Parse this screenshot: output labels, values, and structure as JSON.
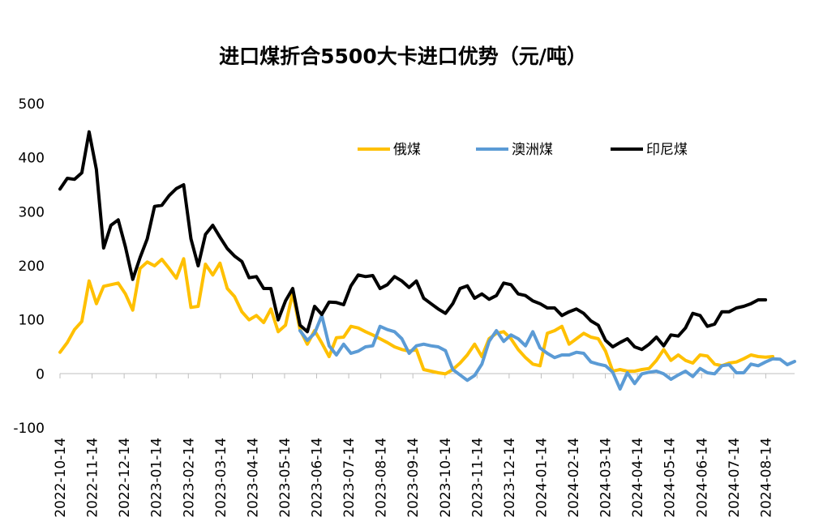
{
  "chart_data": {
    "type": "line",
    "title": "进口煤折合5500大卡进口优势（元/吨）",
    "xlabel": "",
    "ylabel": "",
    "ylim": [
      -100,
      500
    ],
    "yticks": [
      "500",
      "400",
      "300",
      "200",
      "100",
      "0",
      "-100"
    ],
    "xticks": [
      "2022-10-14",
      "2022-11-14",
      "2022-12-14",
      "2023-01-14",
      "2023-02-14",
      "2023-03-14",
      "2023-04-14",
      "2023-05-14",
      "2023-06-14",
      "2023-07-14",
      "2023-08-14",
      "2023-09-14",
      "2023-10-14",
      "2023-11-14",
      "2023-12-14",
      "2024-01-14",
      "2024-02-14",
      "2024-03-14",
      "2024-04-14",
      "2024-05-14",
      "2024-06-14",
      "2024-07-14",
      "2024-08-14"
    ],
    "grid": false,
    "legend_position": "top-right",
    "series": [
      {
        "name": "俄煤",
        "color": "#FFC000",
        "start_index": 0,
        "values": [
          40,
          58,
          82,
          97,
          172,
          130,
          162,
          165,
          168,
          148,
          118,
          195,
          207,
          200,
          212,
          195,
          177,
          213,
          123,
          125,
          203,
          183,
          205,
          158,
          143,
          115,
          100,
          108,
          95,
          120,
          78,
          90,
          150,
          82,
          55,
          80,
          57,
          32,
          67,
          68,
          88,
          85,
          78,
          72,
          65,
          58,
          50,
          45,
          42,
          45,
          8,
          5,
          2,
          0,
          8,
          20,
          35,
          55,
          32,
          65,
          75,
          78,
          65,
          45,
          30,
          18,
          15,
          75,
          80,
          88,
          55,
          65,
          75,
          68,
          65,
          42,
          5,
          8,
          5,
          5,
          8,
          10,
          25,
          45,
          25,
          35,
          25,
          20,
          35,
          33,
          18,
          15,
          20,
          22,
          28,
          35,
          32,
          31,
          32
        ]
      },
      {
        "name": "澳洲煤",
        "color": "#5B9BD5",
        "start_index": 33,
        "values": [
          80,
          62,
          75,
          108,
          52,
          35,
          55,
          38,
          42,
          50,
          52,
          88,
          82,
          78,
          65,
          38,
          52,
          55,
          52,
          50,
          43,
          8,
          -2,
          -12,
          -3,
          18,
          60,
          80,
          60,
          72,
          65,
          52,
          78,
          48,
          38,
          30,
          35,
          35,
          40,
          38,
          22,
          18,
          15,
          3,
          -28,
          2,
          -18,
          0,
          3,
          5,
          0,
          -10,
          -2,
          5,
          -5,
          10,
          2,
          0,
          15,
          17,
          2,
          2,
          18,
          15,
          22,
          28,
          27,
          17,
          23
        ]
      },
      {
        "name": "印尼煤",
        "color": "#000000",
        "start_index": 0,
        "values": [
          342,
          362,
          360,
          372,
          448,
          378,
          233,
          275,
          285,
          235,
          175,
          215,
          250,
          310,
          312,
          330,
          343,
          350,
          250,
          200,
          258,
          275,
          253,
          232,
          218,
          208,
          178,
          180,
          158,
          158,
          100,
          135,
          158,
          90,
          78,
          125,
          110,
          133,
          132,
          128,
          163,
          183,
          180,
          182,
          158,
          165,
          180,
          172,
          160,
          172,
          140,
          130,
          120,
          112,
          130,
          158,
          163,
          140,
          148,
          138,
          145,
          168,
          165,
          148,
          145,
          135,
          130,
          122,
          122,
          108,
          115,
          120,
          112,
          98,
          90,
          62,
          50,
          58,
          65,
          50,
          45,
          55,
          68,
          52,
          72,
          70,
          85,
          112,
          108,
          88,
          92,
          115,
          115,
          122,
          125,
          130,
          137,
          137
        ]
      }
    ]
  }
}
